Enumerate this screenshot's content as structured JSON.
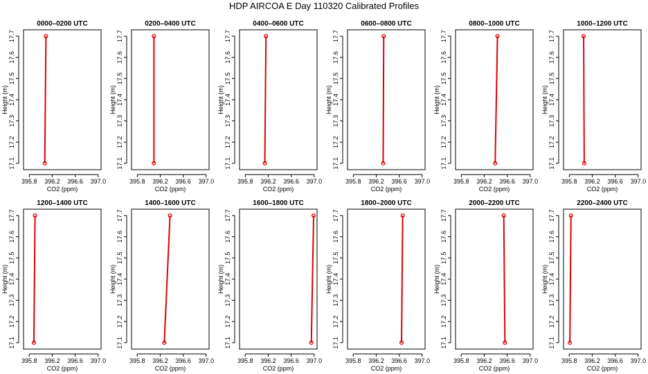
{
  "title": "HDP AIRCOA E  Day 110320  Calibrated Profiles",
  "chart_data": {
    "type": "line",
    "xlabel": "CO2 (ppm)",
    "ylabel": "Height (m)",
    "xlim": [
      395.7,
      397.05
    ],
    "ylim": [
      17.07,
      17.73
    ],
    "xticks": [
      395.8,
      396.2,
      396.6,
      397.0
    ],
    "xtick_labels": [
      "395.8",
      "396.2",
      "396.6",
      "397.0"
    ],
    "yticks": [
      17.1,
      17.2,
      17.3,
      17.4,
      17.5,
      17.6,
      17.7
    ],
    "ytick_labels": [
      "17.1",
      "17.2",
      "17.3",
      "17.4",
      "17.5",
      "17.6",
      "17.7"
    ],
    "grid": false,
    "panels": [
      {
        "title": "0000–0200 UTC",
        "points": [
          {
            "x": 396.07,
            "y": 17.1
          },
          {
            "x": 396.09,
            "y": 17.7
          }
        ]
      },
      {
        "title": "0200–0400 UTC",
        "points": [
          {
            "x": 396.09,
            "y": 17.1
          },
          {
            "x": 396.09,
            "y": 17.7
          }
        ]
      },
      {
        "title": "0400–0600 UTC",
        "points": [
          {
            "x": 396.14,
            "y": 17.1
          },
          {
            "x": 396.16,
            "y": 17.7
          }
        ]
      },
      {
        "title": "0600–0800 UTC",
        "points": [
          {
            "x": 396.32,
            "y": 17.1
          },
          {
            "x": 396.33,
            "y": 17.7
          }
        ]
      },
      {
        "title": "0800–1000 UTC",
        "points": [
          {
            "x": 396.39,
            "y": 17.1
          },
          {
            "x": 396.43,
            "y": 17.7
          }
        ]
      },
      {
        "title": "1000–1200 UTC",
        "points": [
          {
            "x": 396.06,
            "y": 17.1
          },
          {
            "x": 396.05,
            "y": 17.7
          }
        ]
      },
      {
        "title": "1200–1400 UTC",
        "points": [
          {
            "x": 395.88,
            "y": 17.1
          },
          {
            "x": 395.9,
            "y": 17.7
          }
        ]
      },
      {
        "title": "1400–1600 UTC",
        "points": [
          {
            "x": 396.27,
            "y": 17.1
          },
          {
            "x": 396.37,
            "y": 17.7
          }
        ]
      },
      {
        "title": "1600–1800 UTC",
        "points": [
          {
            "x": 396.95,
            "y": 17.1
          },
          {
            "x": 396.99,
            "y": 17.7
          }
        ]
      },
      {
        "title": "1800–2000 UTC",
        "points": [
          {
            "x": 396.64,
            "y": 17.1
          },
          {
            "x": 396.66,
            "y": 17.7
          }
        ]
      },
      {
        "title": "2000–2200 UTC",
        "points": [
          {
            "x": 396.56,
            "y": 17.1
          },
          {
            "x": 396.54,
            "y": 17.7
          }
        ]
      },
      {
        "title": "2200–2400 UTC",
        "points": [
          {
            "x": 395.81,
            "y": 17.1
          },
          {
            "x": 395.83,
            "y": 17.7
          }
        ]
      }
    ]
  }
}
